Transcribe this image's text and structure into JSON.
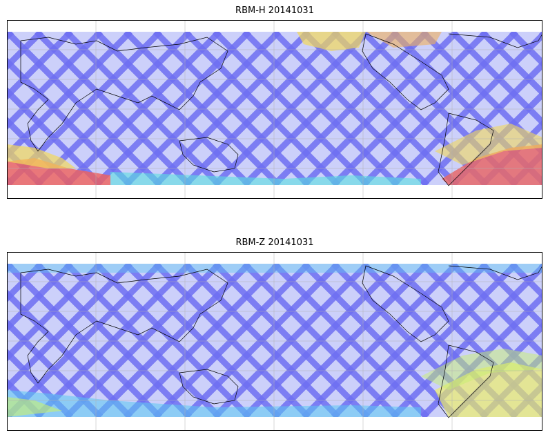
{
  "panels": [
    {
      "title": "RBM-H 20141031",
      "swath_color": "#6f6ff2",
      "hotspots": [
        {
          "color": "#f0605a",
          "level": 0.9
        },
        {
          "color": "#f2d85a",
          "level": 0.7
        },
        {
          "color": "#5ae0e0",
          "level": 0.4
        },
        {
          "color": "#e66868",
          "level": 0.95
        }
      ]
    },
    {
      "title": "RBM-Z 20141031",
      "swath_color": "#6f6ff2",
      "hotspots": [
        {
          "color": "#5ac8f0",
          "level": 0.4
        },
        {
          "color": "#c8f070",
          "level": 0.6
        },
        {
          "color": "#f0f060",
          "level": 0.65
        }
      ]
    }
  ]
}
